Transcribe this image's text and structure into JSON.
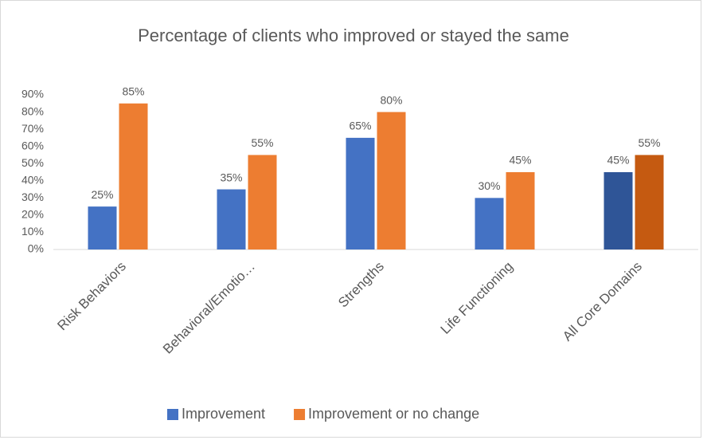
{
  "chart_data": {
    "type": "bar",
    "title": "Percentage of clients who improved or stayed the same",
    "categories": [
      "Risk Behaviors",
      "Behavioral/Emotio…",
      "Strengths",
      "Life Functioning",
      "All Core Domains"
    ],
    "series": [
      {
        "name": "Improvement",
        "color": "#4472c4",
        "point_colors": [
          "#4472c4",
          "#4472c4",
          "#4472c4",
          "#4472c4",
          "#2f5597"
        ],
        "values": [
          25,
          35,
          65,
          30,
          45
        ],
        "value_labels": [
          "25%",
          "35%",
          "65%",
          "30%",
          "45%"
        ]
      },
      {
        "name": "Improvement or no change",
        "color": "#ed7d31",
        "point_colors": [
          "#ed7d31",
          "#ed7d31",
          "#ed7d31",
          "#ed7d31",
          "#c55a11"
        ],
        "values": [
          85,
          55,
          80,
          45,
          55
        ],
        "value_labels": [
          "85%",
          "55%",
          "80%",
          "45%",
          "55%"
        ]
      }
    ],
    "ylim": [
      0,
      90
    ],
    "yticks": [
      {
        "value": 0,
        "label": "0%"
      },
      {
        "value": 10,
        "label": "10%"
      },
      {
        "value": 20,
        "label": "20%"
      },
      {
        "value": 30,
        "label": "30%"
      },
      {
        "value": 40,
        "label": "40%"
      },
      {
        "value": 50,
        "label": "50%"
      },
      {
        "value": 60,
        "label": "60%"
      },
      {
        "value": 70,
        "label": "70%"
      },
      {
        "value": 80,
        "label": "80%"
      },
      {
        "value": 90,
        "label": "90%"
      }
    ],
    "legend": "bottom"
  }
}
